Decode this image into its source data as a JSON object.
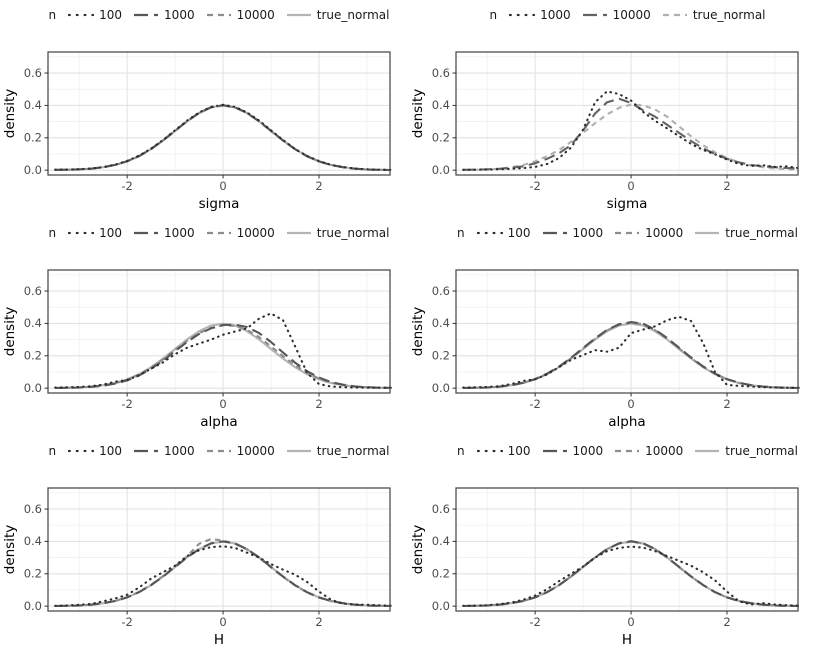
{
  "page_background": "#ffffff",
  "legend_title": "n",
  "style": {
    "grid_major_color": "#e3e3e3",
    "grid_minor_color": "#f1f1f1",
    "panel_border_color": "#4f4f4f",
    "tick_color": "#333333",
    "tick_label_color": "#4d4d4d",
    "axis_title_color": "#000000",
    "curve_width": 2.1
  },
  "axes": {
    "x_domain": [
      -3.65,
      3.48
    ],
    "y_domain": [
      -0.03,
      0.73
    ],
    "x_ticks": [
      {
        "v": -2,
        "label": "-2"
      },
      {
        "v": 0,
        "label": "0"
      },
      {
        "v": 2,
        "label": "2"
      }
    ],
    "x_minor": [
      -3,
      -1,
      1,
      3
    ],
    "y_ticks": [
      {
        "v": 0.0,
        "label": "0.0"
      },
      {
        "v": 0.2,
        "label": "0.2"
      },
      {
        "v": 0.4,
        "label": "0.4"
      },
      {
        "v": 0.6,
        "label": "0.6"
      }
    ],
    "y_minor": [
      0.1,
      0.3,
      0.5,
      0.7
    ],
    "grid": true,
    "legend_position": "top"
  },
  "chart_data": [
    {
      "type": "line",
      "xlabel": "sigma",
      "ylabel": "density",
      "x0": -3.5,
      "dx": 0.25,
      "series": [
        {
          "name": "100",
          "linetype": "dotted",
          "color": "#2e2e2e",
          "y": [
            0.003,
            0.004,
            0.006,
            0.01,
            0.019,
            0.034,
            0.057,
            0.09,
            0.133,
            0.187,
            0.247,
            0.306,
            0.357,
            0.391,
            0.404,
            0.391,
            0.356,
            0.307,
            0.246,
            0.186,
            0.131,
            0.088,
            0.056,
            0.033,
            0.019,
            0.01,
            0.005,
            0.003,
            0.002
          ]
        },
        {
          "name": "1000",
          "linetype": "longdash",
          "color": "#565656",
          "y": [
            0.002,
            0.003,
            0.005,
            0.009,
            0.018,
            0.033,
            0.055,
            0.087,
            0.131,
            0.184,
            0.244,
            0.303,
            0.354,
            0.389,
            0.401,
            0.388,
            0.353,
            0.302,
            0.243,
            0.184,
            0.13,
            0.086,
            0.054,
            0.032,
            0.018,
            0.009,
            0.004,
            0.002,
            0.001
          ]
        },
        {
          "name": "10000",
          "linetype": "dashed",
          "color": "#8d8d8d",
          "y": [
            0.001,
            0.002,
            0.004,
            0.009,
            0.018,
            0.032,
            0.054,
            0.086,
            0.13,
            0.184,
            0.243,
            0.302,
            0.353,
            0.388,
            0.4,
            0.388,
            0.353,
            0.302,
            0.242,
            0.183,
            0.13,
            0.086,
            0.054,
            0.032,
            0.018,
            0.009,
            0.004,
            0.002,
            0.001
          ]
        },
        {
          "name": "true_normal",
          "linetype": "solid",
          "color": "#b4b4b4",
          "y": [
            0.001,
            0.002,
            0.004,
            0.009,
            0.018,
            0.032,
            0.054,
            0.086,
            0.13,
            0.183,
            0.242,
            0.301,
            0.352,
            0.387,
            0.399,
            0.387,
            0.352,
            0.301,
            0.242,
            0.183,
            0.13,
            0.086,
            0.054,
            0.032,
            0.018,
            0.009,
            0.004,
            0.002,
            0.001
          ]
        }
      ]
    },
    {
      "type": "line",
      "xlabel": "sigma",
      "ylabel": "density",
      "x0": -3.5,
      "dx": 0.25,
      "series": [
        {
          "name": "1000",
          "linetype": "dotted",
          "color": "#2e2e2e",
          "y": [
            0.002,
            0.003,
            0.004,
            0.005,
            0.008,
            0.012,
            0.02,
            0.038,
            0.075,
            0.14,
            0.25,
            0.42,
            0.487,
            0.47,
            0.43,
            0.36,
            0.305,
            0.258,
            0.21,
            0.162,
            0.125,
            0.098,
            0.065,
            0.038,
            0.026,
            0.03,
            0.02,
            0.024,
            0.012
          ]
        },
        {
          "name": "10000",
          "linetype": "longdash",
          "color": "#636363",
          "y": [
            0.002,
            0.003,
            0.005,
            0.008,
            0.014,
            0.024,
            0.042,
            0.07,
            0.105,
            0.155,
            0.245,
            0.35,
            0.42,
            0.441,
            0.415,
            0.37,
            0.33,
            0.28,
            0.23,
            0.18,
            0.135,
            0.1,
            0.07,
            0.048,
            0.032,
            0.024,
            0.018,
            0.013,
            0.01
          ]
        },
        {
          "name": "true_normal",
          "linetype": "dashed",
          "color": "#b0b0b0",
          "y": [
            0.001,
            0.002,
            0.004,
            0.009,
            0.018,
            0.032,
            0.054,
            0.086,
            0.125,
            0.175,
            0.23,
            0.29,
            0.345,
            0.385,
            0.405,
            0.4,
            0.375,
            0.33,
            0.27,
            0.21,
            0.155,
            0.11,
            0.075,
            0.048,
            0.03,
            0.018,
            0.011,
            0.006,
            0.003
          ]
        }
      ]
    },
    {
      "type": "line",
      "xlabel": "alpha",
      "ylabel": "density",
      "x0": -3.5,
      "dx": 0.25,
      "series": [
        {
          "name": "100",
          "linetype": "dotted",
          "color": "#2e2e2e",
          "y": [
            0.004,
            0.005,
            0.007,
            0.012,
            0.022,
            0.04,
            0.05,
            0.08,
            0.12,
            0.16,
            0.21,
            0.25,
            0.275,
            0.3,
            0.33,
            0.35,
            0.37,
            0.43,
            0.462,
            0.42,
            0.26,
            0.095,
            0.025,
            0.01,
            0.006,
            0.004,
            0.003,
            0.003,
            0.002
          ]
        },
        {
          "name": "1000",
          "linetype": "longdash",
          "color": "#565656",
          "y": [
            0.001,
            0.002,
            0.004,
            0.008,
            0.015,
            0.028,
            0.048,
            0.078,
            0.12,
            0.17,
            0.228,
            0.285,
            0.335,
            0.37,
            0.39,
            0.392,
            0.378,
            0.34,
            0.285,
            0.22,
            0.158,
            0.105,
            0.065,
            0.038,
            0.021,
            0.011,
            0.006,
            0.003,
            0.002
          ]
        },
        {
          "name": "10000",
          "linetype": "dashed",
          "color": "#8d8d8d",
          "y": [
            0.001,
            0.002,
            0.004,
            0.009,
            0.017,
            0.03,
            0.052,
            0.084,
            0.126,
            0.178,
            0.235,
            0.292,
            0.34,
            0.372,
            0.388,
            0.385,
            0.36,
            0.315,
            0.258,
            0.198,
            0.142,
            0.095,
            0.059,
            0.034,
            0.019,
            0.01,
            0.005,
            0.002,
            0.001
          ]
        },
        {
          "name": "true_normal",
          "linetype": "solid",
          "color": "#b4b4b4",
          "y": [
            0.001,
            0.002,
            0.004,
            0.009,
            0.018,
            0.032,
            0.054,
            0.086,
            0.13,
            0.183,
            0.242,
            0.301,
            0.352,
            0.387,
            0.399,
            0.387,
            0.352,
            0.301,
            0.242,
            0.183,
            0.13,
            0.086,
            0.054,
            0.032,
            0.018,
            0.009,
            0.004,
            0.002,
            0.001
          ]
        }
      ]
    },
    {
      "type": "line",
      "xlabel": "alpha",
      "ylabel": "density",
      "x0": -3.5,
      "dx": 0.25,
      "series": [
        {
          "name": "100",
          "linetype": "dotted",
          "color": "#2e2e2e",
          "y": [
            0.004,
            0.005,
            0.007,
            0.012,
            0.025,
            0.045,
            0.055,
            0.085,
            0.13,
            0.175,
            0.205,
            0.235,
            0.225,
            0.25,
            0.34,
            0.362,
            0.382,
            0.42,
            0.441,
            0.415,
            0.28,
            0.1,
            0.02,
            0.014,
            0.01,
            0.006,
            0.004,
            0.003,
            0.002
          ]
        },
        {
          "name": "1000",
          "linetype": "longdash",
          "color": "#565656",
          "y": [
            0.001,
            0.002,
            0.004,
            0.009,
            0.018,
            0.033,
            0.056,
            0.09,
            0.133,
            0.188,
            0.248,
            0.308,
            0.36,
            0.395,
            0.408,
            0.398,
            0.362,
            0.31,
            0.25,
            0.19,
            0.135,
            0.09,
            0.056,
            0.033,
            0.018,
            0.01,
            0.005,
            0.002,
            0.001
          ]
        },
        {
          "name": "10000",
          "linetype": "dashed",
          "color": "#8d8d8d",
          "y": [
            0.001,
            0.002,
            0.004,
            0.009,
            0.018,
            0.032,
            0.055,
            0.088,
            0.131,
            0.185,
            0.245,
            0.305,
            0.357,
            0.392,
            0.405,
            0.395,
            0.358,
            0.306,
            0.246,
            0.186,
            0.132,
            0.088,
            0.055,
            0.032,
            0.018,
            0.009,
            0.004,
            0.002,
            0.001
          ]
        },
        {
          "name": "true_normal",
          "linetype": "solid",
          "color": "#b4b4b4",
          "y": [
            0.001,
            0.002,
            0.004,
            0.009,
            0.018,
            0.032,
            0.054,
            0.086,
            0.13,
            0.183,
            0.242,
            0.301,
            0.352,
            0.387,
            0.399,
            0.387,
            0.352,
            0.301,
            0.242,
            0.183,
            0.13,
            0.086,
            0.054,
            0.032,
            0.018,
            0.009,
            0.004,
            0.002,
            0.001
          ]
        }
      ]
    },
    {
      "type": "line",
      "xlabel": "H",
      "ylabel": "density",
      "x0": -3.5,
      "dx": 0.25,
      "series": [
        {
          "name": "100",
          "linetype": "dotted",
          "color": "#2e2e2e",
          "y": [
            0.002,
            0.004,
            0.008,
            0.014,
            0.03,
            0.048,
            0.07,
            0.115,
            0.17,
            0.21,
            0.25,
            0.31,
            0.345,
            0.365,
            0.37,
            0.36,
            0.33,
            0.3,
            0.26,
            0.225,
            0.195,
            0.15,
            0.09,
            0.04,
            0.015,
            0.01,
            0.008,
            0.005,
            0.003
          ]
        },
        {
          "name": "1000",
          "linetype": "longdash",
          "color": "#565656",
          "y": [
            0.001,
            0.002,
            0.004,
            0.009,
            0.018,
            0.032,
            0.054,
            0.087,
            0.13,
            0.183,
            0.242,
            0.302,
            0.353,
            0.388,
            0.4,
            0.387,
            0.352,
            0.301,
            0.242,
            0.183,
            0.13,
            0.086,
            0.054,
            0.032,
            0.018,
            0.009,
            0.004,
            0.002,
            0.001
          ]
        },
        {
          "name": "10000",
          "linetype": "dashed",
          "color": "#8d8d8d",
          "y": [
            0.001,
            0.002,
            0.004,
            0.009,
            0.018,
            0.032,
            0.055,
            0.088,
            0.132,
            0.186,
            0.246,
            0.308,
            0.385,
            0.415,
            0.405,
            0.385,
            0.35,
            0.298,
            0.24,
            0.181,
            0.128,
            0.085,
            0.053,
            0.031,
            0.017,
            0.009,
            0.004,
            0.002,
            0.001
          ]
        },
        {
          "name": "true_normal",
          "linetype": "solid",
          "color": "#b4b4b4",
          "y": [
            0.001,
            0.002,
            0.004,
            0.009,
            0.018,
            0.032,
            0.054,
            0.086,
            0.13,
            0.183,
            0.242,
            0.301,
            0.352,
            0.387,
            0.399,
            0.387,
            0.352,
            0.301,
            0.242,
            0.183,
            0.13,
            0.086,
            0.054,
            0.032,
            0.018,
            0.009,
            0.004,
            0.002,
            0.001
          ]
        }
      ]
    },
    {
      "type": "line",
      "xlabel": "H",
      "ylabel": "density",
      "x0": -3.5,
      "dx": 0.25,
      "series": [
        {
          "name": "100",
          "linetype": "dotted",
          "color": "#2e2e2e",
          "y": [
            0.002,
            0.003,
            0.006,
            0.012,
            0.022,
            0.04,
            0.065,
            0.105,
            0.155,
            0.2,
            0.245,
            0.3,
            0.34,
            0.36,
            0.368,
            0.362,
            0.34,
            0.31,
            0.28,
            0.25,
            0.21,
            0.16,
            0.09,
            0.03,
            0.01,
            0.018,
            0.01,
            0.006,
            0.003
          ]
        },
        {
          "name": "1000",
          "linetype": "longdash",
          "color": "#565656",
          "y": [
            0.001,
            0.002,
            0.004,
            0.009,
            0.018,
            0.032,
            0.054,
            0.086,
            0.13,
            0.184,
            0.243,
            0.302,
            0.353,
            0.388,
            0.401,
            0.388,
            0.353,
            0.302,
            0.243,
            0.184,
            0.131,
            0.087,
            0.054,
            0.032,
            0.018,
            0.009,
            0.004,
            0.002,
            0.001
          ]
        },
        {
          "name": "10000",
          "linetype": "dashed",
          "color": "#8d8d8d",
          "y": [
            0.001,
            0.002,
            0.004,
            0.009,
            0.018,
            0.032,
            0.054,
            0.086,
            0.13,
            0.183,
            0.242,
            0.301,
            0.352,
            0.387,
            0.399,
            0.387,
            0.352,
            0.301,
            0.242,
            0.183,
            0.13,
            0.086,
            0.054,
            0.032,
            0.018,
            0.009,
            0.004,
            0.002,
            0.001
          ]
        },
        {
          "name": "true_normal",
          "linetype": "solid",
          "color": "#b4b4b4",
          "y": [
            0.001,
            0.002,
            0.004,
            0.009,
            0.018,
            0.032,
            0.054,
            0.086,
            0.13,
            0.183,
            0.242,
            0.301,
            0.352,
            0.387,
            0.399,
            0.387,
            0.352,
            0.301,
            0.242,
            0.183,
            0.13,
            0.086,
            0.054,
            0.032,
            0.018,
            0.009,
            0.004,
            0.002,
            0.001
          ]
        }
      ]
    }
  ]
}
